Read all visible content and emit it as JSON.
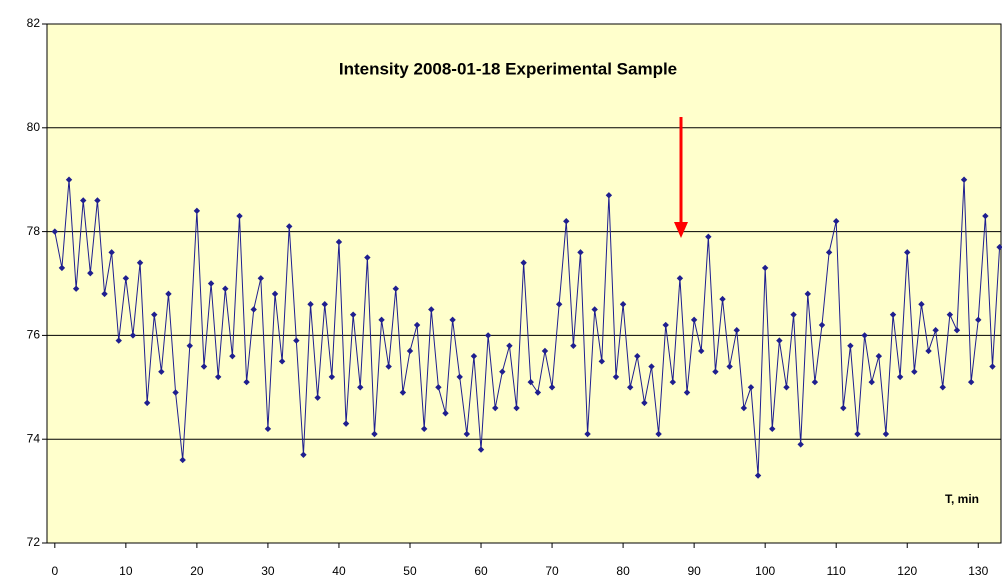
{
  "chart_data": {
    "type": "line",
    "title": "Intensity  2008-01-18 Experimental Sample",
    "x_annotation": "T, min",
    "x": [
      0,
      1,
      2,
      3,
      4,
      5,
      6,
      7,
      8,
      9,
      10,
      11,
      12,
      13,
      14,
      15,
      16,
      17,
      18,
      19,
      20,
      21,
      22,
      23,
      24,
      25,
      26,
      27,
      28,
      29,
      30,
      31,
      32,
      33,
      34,
      35,
      36,
      37,
      38,
      39,
      40,
      41,
      42,
      43,
      44,
      45,
      46,
      47,
      48,
      49,
      50,
      51,
      52,
      53,
      54,
      55,
      56,
      57,
      58,
      59,
      60,
      61,
      62,
      63,
      64,
      65,
      66,
      67,
      68,
      69,
      70,
      71,
      72,
      73,
      74,
      75,
      76,
      77,
      78,
      79,
      80,
      81,
      82,
      83,
      84,
      85,
      86,
      87,
      88,
      89,
      90,
      91,
      92,
      93,
      94,
      95,
      96,
      97,
      98,
      99,
      100,
      101,
      102,
      103,
      104,
      105,
      106,
      107,
      108,
      109,
      110,
      111,
      112,
      113,
      114,
      115,
      116,
      117,
      118,
      119,
      120,
      121,
      122,
      123,
      124,
      125,
      126,
      127,
      128,
      129,
      130,
      131,
      132,
      133
    ],
    "series": [
      {
        "color": "#1f1f8f",
        "values": [
          78.0,
          77.3,
          79.0,
          76.9,
          78.6,
          77.2,
          78.6,
          76.8,
          77.6,
          75.9,
          77.1,
          76.0,
          77.4,
          74.7,
          76.4,
          75.3,
          76.8,
          74.9,
          73.6,
          75.8,
          78.4,
          75.4,
          77.0,
          75.2,
          76.9,
          75.6,
          78.3,
          75.1,
          76.5,
          77.1,
          74.2,
          76.8,
          75.5,
          78.1,
          75.9,
          73.7,
          76.6,
          74.8,
          76.6,
          75.2,
          77.8,
          74.3,
          76.4,
          75.0,
          77.5,
          74.1,
          76.3,
          75.4,
          76.9,
          74.9,
          75.7,
          76.2,
          74.2,
          76.5,
          75.0,
          74.5,
          76.3,
          75.2,
          74.1,
          75.6,
          73.8,
          76.0,
          74.6,
          75.3,
          75.8,
          74.6,
          77.4,
          75.1,
          74.9,
          75.7,
          75.0,
          76.6,
          78.2,
          75.8,
          77.6,
          74.1,
          76.5,
          75.5,
          78.7,
          75.2,
          76.6,
          75.0,
          75.6,
          74.7,
          75.4,
          74.1,
          76.2,
          75.1,
          77.1,
          74.9,
          76.3,
          75.7,
          77.9,
          75.3,
          76.7,
          75.4,
          76.1,
          74.6,
          75.0,
          73.3,
          77.3,
          74.2,
          75.9,
          75.0,
          76.4,
          73.9,
          76.8,
          75.1,
          76.2,
          77.6,
          78.2,
          74.6,
          75.8,
          74.1,
          76.0,
          75.1,
          75.6,
          74.1,
          76.4,
          75.2,
          77.6,
          75.3,
          76.6,
          75.7,
          76.1,
          75.0,
          76.4,
          76.1,
          79.0,
          75.1,
          76.3,
          78.3,
          75.4,
          77.7
        ]
      }
    ],
    "xlim": [
      -1.1,
      133.2
    ],
    "xticks": [
      0,
      10,
      20,
      30,
      40,
      50,
      60,
      70,
      80,
      90,
      100,
      110,
      120,
      130
    ],
    "ylim": [
      72,
      82
    ],
    "yticks": [
      72,
      74,
      76,
      78,
      80,
      82
    ],
    "grid": true,
    "background": "#ffffcc"
  }
}
